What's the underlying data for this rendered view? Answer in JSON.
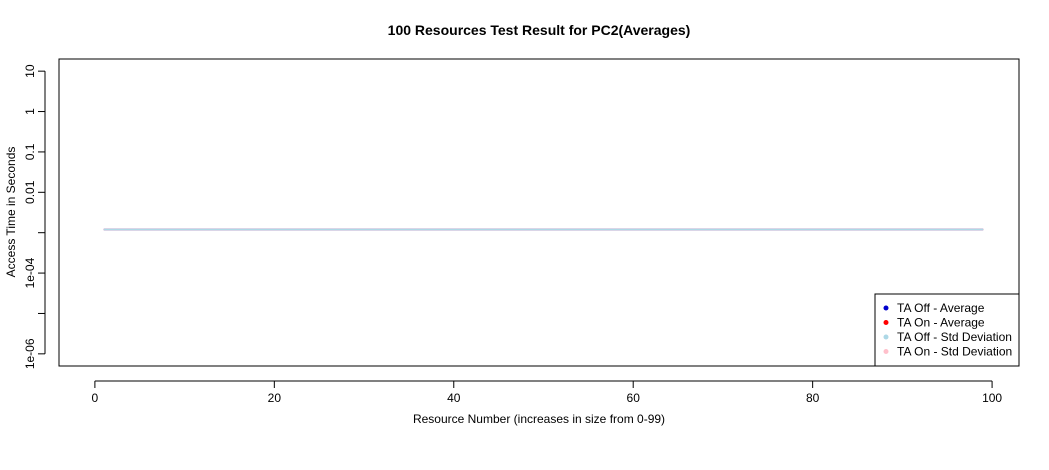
{
  "chart_data": {
    "type": "line",
    "title": "100 Resources Test Result for PC2(Averages)",
    "xlabel": "Resource Number (increases in size from 0-99)",
    "ylabel": "Access Time in Seconds",
    "xlim": [
      -4,
      103
    ],
    "ylim": [
      5e-07,
      20
    ],
    "yscale": "log",
    "x_ticks": [
      0,
      20,
      40,
      60,
      80,
      100
    ],
    "y_ticks": [
      {
        "value": 1e-06,
        "label": "1e-06"
      },
      {
        "value": 1e-05,
        "label": ""
      },
      {
        "value": 0.0001,
        "label": "1e-04"
      },
      {
        "value": 0.001,
        "label": ""
      },
      {
        "value": 0.01,
        "label": "0.01"
      },
      {
        "value": 0.1,
        "label": "0.1"
      },
      {
        "value": 1,
        "label": "1"
      },
      {
        "value": 10,
        "label": "10"
      }
    ],
    "legend_position": "bottom-right",
    "series": [
      {
        "name": "TA Off - Average",
        "color": "#0000cc",
        "x_range": [
          1,
          99
        ],
        "value": 0.0012
      },
      {
        "name": "TA On - Average",
        "color": "#ff0000",
        "x_range": [
          1,
          99
        ],
        "value": 0.0012
      },
      {
        "name": "TA Off - Std Deviation",
        "color": "#add8e6",
        "x_range": [
          1,
          99
        ],
        "value": 0.0012
      },
      {
        "name": "TA On - Std Deviation",
        "color": "#ffc0cb",
        "x_range": [
          1,
          99
        ],
        "value": 0.0012
      }
    ]
  }
}
